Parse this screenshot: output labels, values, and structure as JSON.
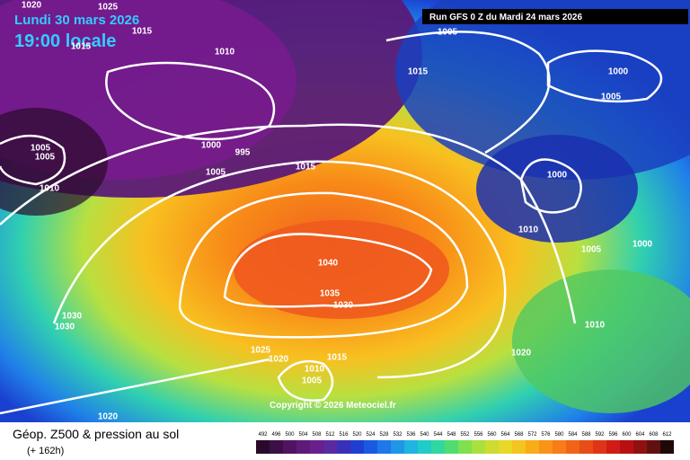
{
  "header": {
    "date": "Lundi 30 mars 2026",
    "time": "19:00 locale",
    "run": "Run GFS 0 Z du Mardi 24 mars 2026"
  },
  "map": {
    "copyright": "Copyright © 2026 Meteociel.fr",
    "isobar_labels": [
      1020,
      1025,
      1015,
      1015,
      1010,
      1015,
      1005,
      1000,
      1005,
      1005,
      1005,
      1010,
      1000,
      995,
      1005,
      1015,
      1000,
      1010,
      1005,
      1000,
      1040,
      1035,
      1030,
      1030,
      1030,
      1025,
      1020,
      1015,
      1010,
      1005,
      1020,
      1010,
      1020
    ]
  },
  "legend": {
    "title": "Géop. Z500 & pression au sol",
    "lead": "(+ 162h)",
    "scale_labels": [
      492,
      496,
      500,
      504,
      508,
      512,
      516,
      520,
      524,
      528,
      532,
      536,
      540,
      544,
      548,
      552,
      556,
      560,
      564,
      568,
      572,
      576,
      580,
      584,
      588,
      592,
      596,
      600,
      604,
      608,
      612
    ],
    "scale_colors": [
      "#2a0a2a",
      "#3c0f45",
      "#4e1460",
      "#5e1a78",
      "#6a1f8c",
      "#5a2aa0",
      "#3a30b8",
      "#1f3fd0",
      "#1a5ae0",
      "#1e78e8",
      "#2096e6",
      "#20b4e0",
      "#20ccc8",
      "#30d8a0",
      "#50dc70",
      "#80e050",
      "#a8e040",
      "#ccdc30",
      "#e8d828",
      "#f4c420",
      "#f8ac18",
      "#f89418",
      "#f87c18",
      "#f06418",
      "#e84c18",
      "#e03418",
      "#d01c14",
      "#b81010",
      "#901010",
      "#601010",
      "#200808"
    ]
  }
}
